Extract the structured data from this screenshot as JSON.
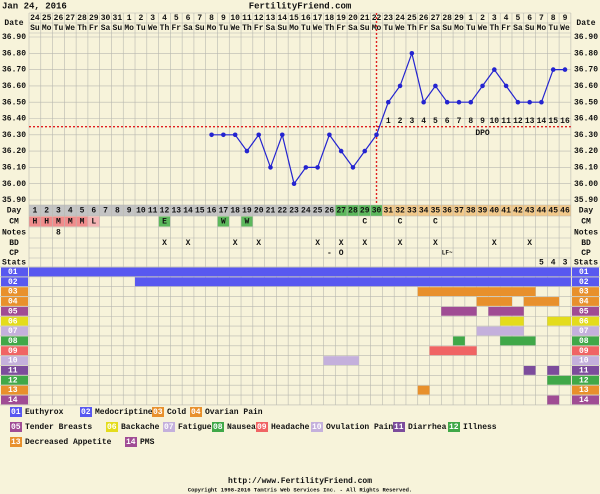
{
  "header": {
    "date": "Jan 24, 2016",
    "site": "FertilityFriend.com"
  },
  "chart_data": {
    "type": "fertility-chart",
    "dates": [
      24,
      25,
      26,
      27,
      28,
      29,
      30,
      31,
      1,
      2,
      3,
      4,
      5,
      6,
      7,
      8,
      9,
      10,
      11,
      12,
      13,
      14,
      15,
      16,
      17,
      18,
      19,
      20,
      21,
      22,
      23,
      24,
      25,
      26,
      27,
      28,
      29,
      1,
      2,
      3,
      4,
      5,
      6,
      7,
      8,
      9
    ],
    "weekdays": [
      "Su",
      "Mo",
      "Tu",
      "We",
      "Th",
      "Fr",
      "Sa",
      "Su",
      "Mo",
      "Tu",
      "We",
      "Th",
      "Fr",
      "Sa",
      "Su",
      "Mo",
      "Tu",
      "We",
      "Th",
      "Fr",
      "Sa",
      "Su",
      "Mo",
      "Tu",
      "We",
      "Th",
      "Fr",
      "Sa",
      "Su",
      "Mo",
      "Tu",
      "We",
      "Th",
      "Fr",
      "Sa",
      "Su",
      "Mo",
      "Tu",
      "We",
      "Th",
      "Fr",
      "Sa",
      "Su",
      "Mo",
      "Tu",
      "We"
    ],
    "cycle_days": [
      1,
      2,
      3,
      4,
      5,
      6,
      7,
      8,
      9,
      10,
      11,
      12,
      13,
      14,
      15,
      16,
      17,
      18,
      19,
      20,
      21,
      22,
      23,
      24,
      25,
      26,
      27,
      28,
      29,
      30,
      31,
      32,
      33,
      34,
      35,
      36,
      37,
      38,
      39,
      40,
      41,
      42,
      43,
      44,
      45,
      46
    ],
    "row_labels": {
      "date": "Date",
      "day": "Day",
      "cm": "CM",
      "notes": "Notes",
      "bd": "BD",
      "cp": "CP",
      "stats": "Stats"
    },
    "temps": [
      null,
      null,
      null,
      null,
      null,
      null,
      null,
      null,
      null,
      null,
      null,
      null,
      null,
      null,
      null,
      36.3,
      36.3,
      36.3,
      36.2,
      36.3,
      36.1,
      36.3,
      36.0,
      36.1,
      36.1,
      36.3,
      36.2,
      36.1,
      36.2,
      36.3,
      36.5,
      36.6,
      36.8,
      36.5,
      36.6,
      36.5,
      36.5,
      36.5,
      36.6,
      36.7,
      36.6,
      36.5,
      36.5,
      36.5,
      36.7,
      36.7
    ],
    "color": "#2424d0",
    "ylim": [
      35.9,
      36.9
    ],
    "yticks": [
      {
        "value": 35.9,
        "label": "35.90"
      },
      {
        "value": 36.0,
        "label": "36.00"
      },
      {
        "value": 36.1,
        "label": "36.10"
      },
      {
        "value": 36.2,
        "label": "36.20"
      },
      {
        "value": 36.3,
        "label": "36.30"
      },
      {
        "value": 36.4,
        "label": "36.40"
      },
      {
        "value": 36.5,
        "label": "36.50"
      },
      {
        "value": 36.6,
        "label": "36.60"
      },
      {
        "value": 36.7,
        "label": "36.70"
      },
      {
        "value": 36.8,
        "label": "36.80"
      },
      {
        "value": 36.9,
        "label": "36.90"
      }
    ],
    "grid": true,
    "coverline": 36.35,
    "ovulation_day": 30,
    "line_color": "#e02020",
    "dpo": {
      "label": "DPO",
      "values": [
        1,
        2,
        3,
        4,
        5,
        6,
        7,
        8,
        9,
        10,
        11,
        12,
        13,
        14,
        15,
        16
      ]
    },
    "day_colors": {
      "default": "#c4c4c4",
      "fertile": "#5cb85c",
      "luteal": "#f2c98a"
    },
    "fertile_days": [
      27,
      30
    ],
    "cm": [
      {
        "day": 1,
        "text": "H",
        "color": "#f08c8c"
      },
      {
        "day": 2,
        "text": "H",
        "color": "#f08c8c"
      },
      {
        "day": 3,
        "text": "M",
        "color": "#f08c8c"
      },
      {
        "day": 4,
        "text": "M",
        "color": "#f08c8c"
      },
      {
        "day": 5,
        "text": "M",
        "color": "#f08c8c"
      },
      {
        "day": 6,
        "text": "L",
        "color": "#f4b4b4"
      },
      {
        "day": 12,
        "text": "E",
        "color": "#5cb85c"
      },
      {
        "day": 17,
        "text": "W",
        "color": "#5cb85c"
      },
      {
        "day": 19,
        "text": "W",
        "color": "#5cb85c"
      },
      {
        "day": 29,
        "text": "C"
      },
      {
        "day": 32,
        "text": "C"
      },
      {
        "day": 35,
        "text": "C"
      }
    ],
    "notes": [
      {
        "day": 3,
        "text": "8"
      }
    ],
    "bd": [
      {
        "day": 12,
        "text": "X"
      },
      {
        "day": 14,
        "text": "X"
      },
      {
        "day": 18,
        "text": "X"
      },
      {
        "day": 20,
        "text": "X"
      },
      {
        "day": 25,
        "text": "X"
      },
      {
        "day": 27,
        "text": "X"
      },
      {
        "day": 29,
        "text": "X"
      },
      {
        "day": 32,
        "text": "X"
      },
      {
        "day": 35,
        "text": "X"
      },
      {
        "day": 40,
        "text": "X"
      },
      {
        "day": 43,
        "text": "X"
      }
    ],
    "cp": [
      {
        "day": 26,
        "text": "-"
      },
      {
        "day": 27,
        "text": "O"
      },
      {
        "day": 36,
        "text": "LF~"
      }
    ],
    "stats": [
      {
        "day": 44,
        "value": 5
      },
      {
        "day": 45,
        "value": 4
      },
      {
        "day": 46,
        "value": 3
      }
    ],
    "medications": [
      {
        "code": "01",
        "name": "Euthyrox",
        "color": "#5858f0",
        "periods": [
          [
            1,
            46
          ]
        ]
      },
      {
        "code": "02",
        "name": "Medocriptine",
        "color": "#5858f0",
        "periods": [
          [
            10,
            46
          ]
        ]
      },
      {
        "code": "03",
        "name": "Cold",
        "color": "#e8902c",
        "periods": [
          [
            34,
            43
          ]
        ]
      },
      {
        "code": "04",
        "name": "Ovarian Pain",
        "color": "#e8902c",
        "periods": [
          [
            39,
            41
          ],
          [
            43,
            45
          ]
        ]
      },
      {
        "code": "05",
        "name": "Tender Breasts",
        "color": "#a04c94",
        "periods": [
          [
            36,
            38
          ],
          [
            40,
            42
          ]
        ]
      },
      {
        "code": "06",
        "name": "Backache",
        "color": "#e4dc1c",
        "periods": [
          [
            41,
            42
          ],
          [
            45,
            46
          ]
        ]
      },
      {
        "code": "07",
        "name": "Fatigue",
        "color": "#c4b0dc",
        "periods": [
          [
            39,
            42
          ]
        ]
      },
      {
        "code": "08",
        "name": "Nausea",
        "color": "#40a848",
        "periods": [
          [
            37,
            37
          ],
          [
            41,
            43
          ]
        ]
      },
      {
        "code": "09",
        "name": "Headache",
        "color": "#f06464",
        "periods": [
          [
            35,
            38
          ]
        ]
      },
      {
        "code": "10",
        "name": "Ovulation Pain",
        "color": "#c4b0dc",
        "periods": [
          [
            26,
            28
          ]
        ]
      },
      {
        "code": "11",
        "name": "Diarrhea",
        "color": "#7c4c9c",
        "periods": [
          [
            43,
            43
          ],
          [
            45,
            45
          ]
        ]
      },
      {
        "code": "12",
        "name": "Illness",
        "color": "#40a848",
        "periods": [
          [
            45,
            46
          ]
        ]
      },
      {
        "code": "13",
        "name": "Decreased Appetite",
        "color": "#e8902c",
        "periods": [
          [
            34,
            34
          ]
        ]
      },
      {
        "code": "14",
        "name": "PMS",
        "color": "#a04c94",
        "periods": [
          [
            45,
            45
          ]
        ]
      }
    ]
  },
  "footer": {
    "url": "http://www.FertilityFriend.com",
    "copyright": "Copyright 1998-2016 Tamtris Web Services Inc. - All Rights Reserved."
  }
}
